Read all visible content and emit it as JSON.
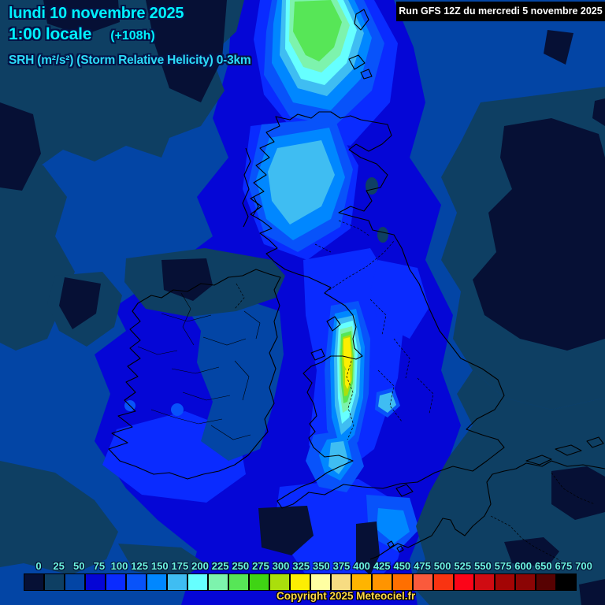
{
  "header": {
    "date_line": "lundi 10 novembre 2025",
    "time_line": "1:00 locale",
    "forecast_offset": "(+108h)",
    "parameter_line": "SRH (m²/s²) (Storm Relative Helicity) 0-3km",
    "text_color": "#00f2ff",
    "parameter_color": "#2cdcf8"
  },
  "run_info": {
    "label": "Run GFS 12Z du mercredi 5 novembre 2025",
    "background": "#000000",
    "color": "#ffffff"
  },
  "legend": {
    "labels": [
      "0",
      "25",
      "50",
      "75",
      "100",
      "125",
      "150",
      "175",
      "200",
      "225",
      "250",
      "275",
      "300",
      "325",
      "350",
      "375",
      "400",
      "425",
      "450",
      "475",
      "500",
      "525",
      "550",
      "575",
      "600",
      "650",
      "675",
      "700"
    ],
    "colors": [
      "#061035",
      "#0e3f63",
      "#0345a5",
      "#0505d5",
      "#0a2bff",
      "#0853fa",
      "#0087ff",
      "#3fbdf2",
      "#66ffff",
      "#7df3ad",
      "#57e657",
      "#3fd414",
      "#aadf0c",
      "#fdee02",
      "#ffffa2",
      "#f7dc82",
      "#ffb400",
      "#ff9400",
      "#ff6f00",
      "#fa5a3c",
      "#f93311",
      "#fc0418",
      "#d00b12",
      "#a30505",
      "#8b0505",
      "#570202",
      "#000000"
    ],
    "label_color": "#6cf3e0",
    "unit": "m²/s²"
  },
  "map_colors": {
    "ocean_base": "#0345a5",
    "dark_region": "#0e3f63",
    "darkest_region": "#061035",
    "bright_region": "#0506d6",
    "coastline": "#000000"
  },
  "copyright": {
    "text": "Copyright 2025 Meteociel.fr",
    "color": "#ffd94a"
  }
}
